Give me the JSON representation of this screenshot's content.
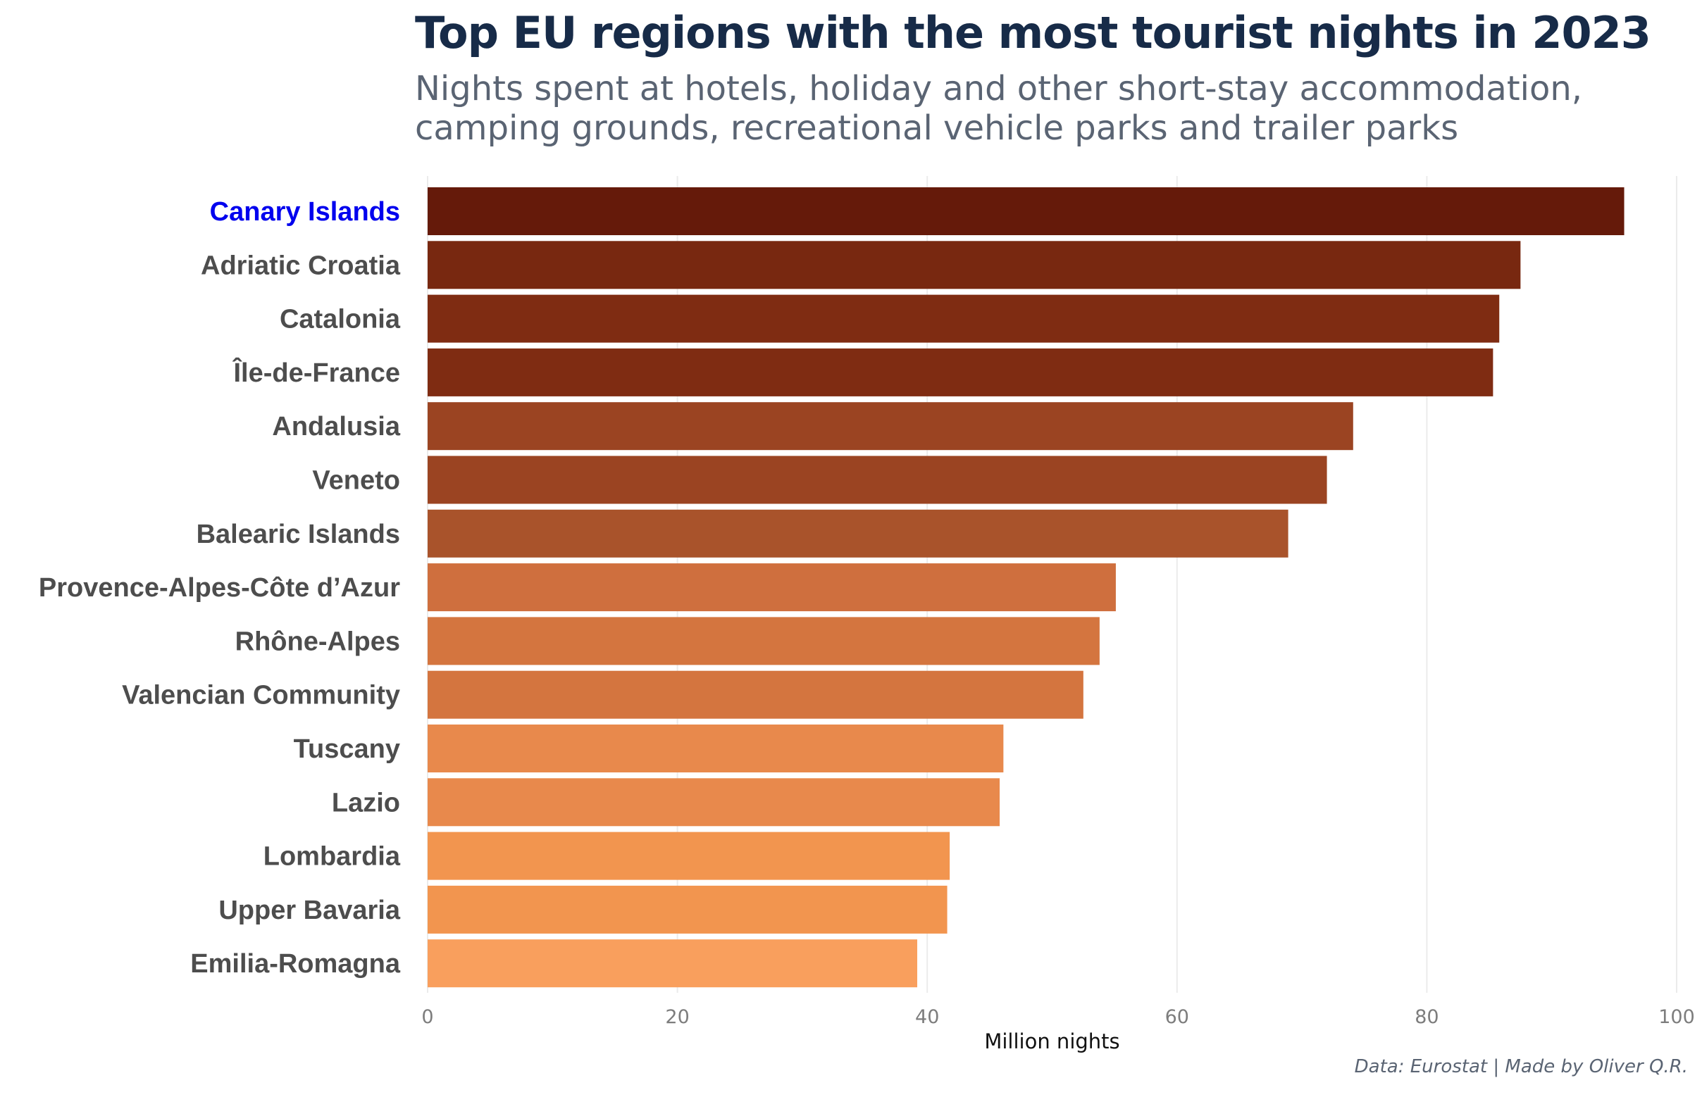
{
  "chart_data": {
    "type": "bar",
    "orientation": "horizontal",
    "title": "Top EU regions with the most tourist nights in 2023",
    "subtitle_lines": [
      "Nights spent at hotels, holiday and other short-stay accommodation,",
      "camping grounds, recreational vehicle parks and trailer parks"
    ],
    "xlabel": "Million nights",
    "ylabel": "",
    "xlim": [
      0,
      100
    ],
    "x_ticks": [
      "0",
      "20",
      "40",
      "60",
      "80",
      "100"
    ],
    "grid": "vertical",
    "categories": [
      "Canary Islands",
      "Adriatic Croatia",
      "Catalonia",
      "Île-de-France",
      "Andalusia",
      "Veneto",
      "Balearic Islands",
      "Provence-Alpes-Côte d’Azur",
      "Rhône-Alpes",
      "Valencian Community",
      "Tuscany",
      "Lazio",
      "Lombardia",
      "Upper Bavaria",
      "Emilia-Romagna"
    ],
    "values": [
      95.8,
      87.5,
      85.8,
      85.3,
      74.1,
      72.0,
      68.9,
      55.1,
      53.8,
      52.5,
      46.1,
      45.8,
      41.8,
      41.6,
      39.2
    ],
    "bar_colors": [
      "#651a0a",
      "#782810",
      "#7f2c12",
      "#7f2c12",
      "#9b4422",
      "#9b4422",
      "#a9532b",
      "#cf6f3e",
      "#d4753f",
      "#d4753f",
      "#e8894c",
      "#e8894c",
      "#f2954f",
      "#f2954f",
      "#f99f5d"
    ],
    "highlight_category": "Canary Islands",
    "highlight_color": "#0000ee",
    "label_color": "#4d4d4d",
    "grid_color": "#ebebeb"
  },
  "source_note": "Data: Eurostat | Made by Oliver Q.R."
}
